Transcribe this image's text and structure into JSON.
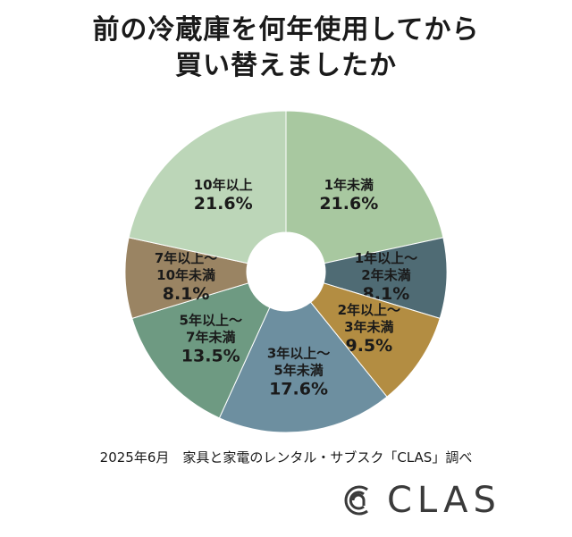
{
  "title": {
    "line1": "前の冷蔵庫を何年使用してから",
    "line2": "買い替えましたか"
  },
  "chart_data": {
    "type": "pie",
    "variant": "donut",
    "slices": [
      {
        "label_lines": [
          "1年未満"
        ],
        "value": 21.6,
        "value_text": "21.6%",
        "color": "#a8c8a0"
      },
      {
        "label_lines": [
          "1年以上～",
          "2年未満"
        ],
        "value": 8.1,
        "value_text": "8.1%",
        "color": "#4f6b74"
      },
      {
        "label_lines": [
          "2年以上～",
          "3年未満"
        ],
        "value": 9.5,
        "value_text": "9.5%",
        "color": "#b38d42"
      },
      {
        "label_lines": [
          "3年以上～",
          "5年未満"
        ],
        "value": 17.6,
        "value_text": "17.6%",
        "color": "#6d8fa0"
      },
      {
        "label_lines": [
          "5年以上～",
          "7年未満"
        ],
        "value": 13.5,
        "value_text": "13.5%",
        "color": "#6e9a82"
      },
      {
        "label_lines": [
          "7年以上～",
          "10年未満"
        ],
        "value": 8.1,
        "value_text": "8.1%",
        "color": "#9a8463"
      },
      {
        "label_lines": [
          "10年以上"
        ],
        "value": 21.6,
        "value_text": "21.6%",
        "color": "#bcd6b8"
      }
    ]
  },
  "source": "2025年6月　家具と家電のレンタル・サブスク「CLAS」調べ",
  "logo": {
    "text": "CLAS",
    "icon": "clas-logo-icon",
    "color": "#3a3a3a"
  }
}
